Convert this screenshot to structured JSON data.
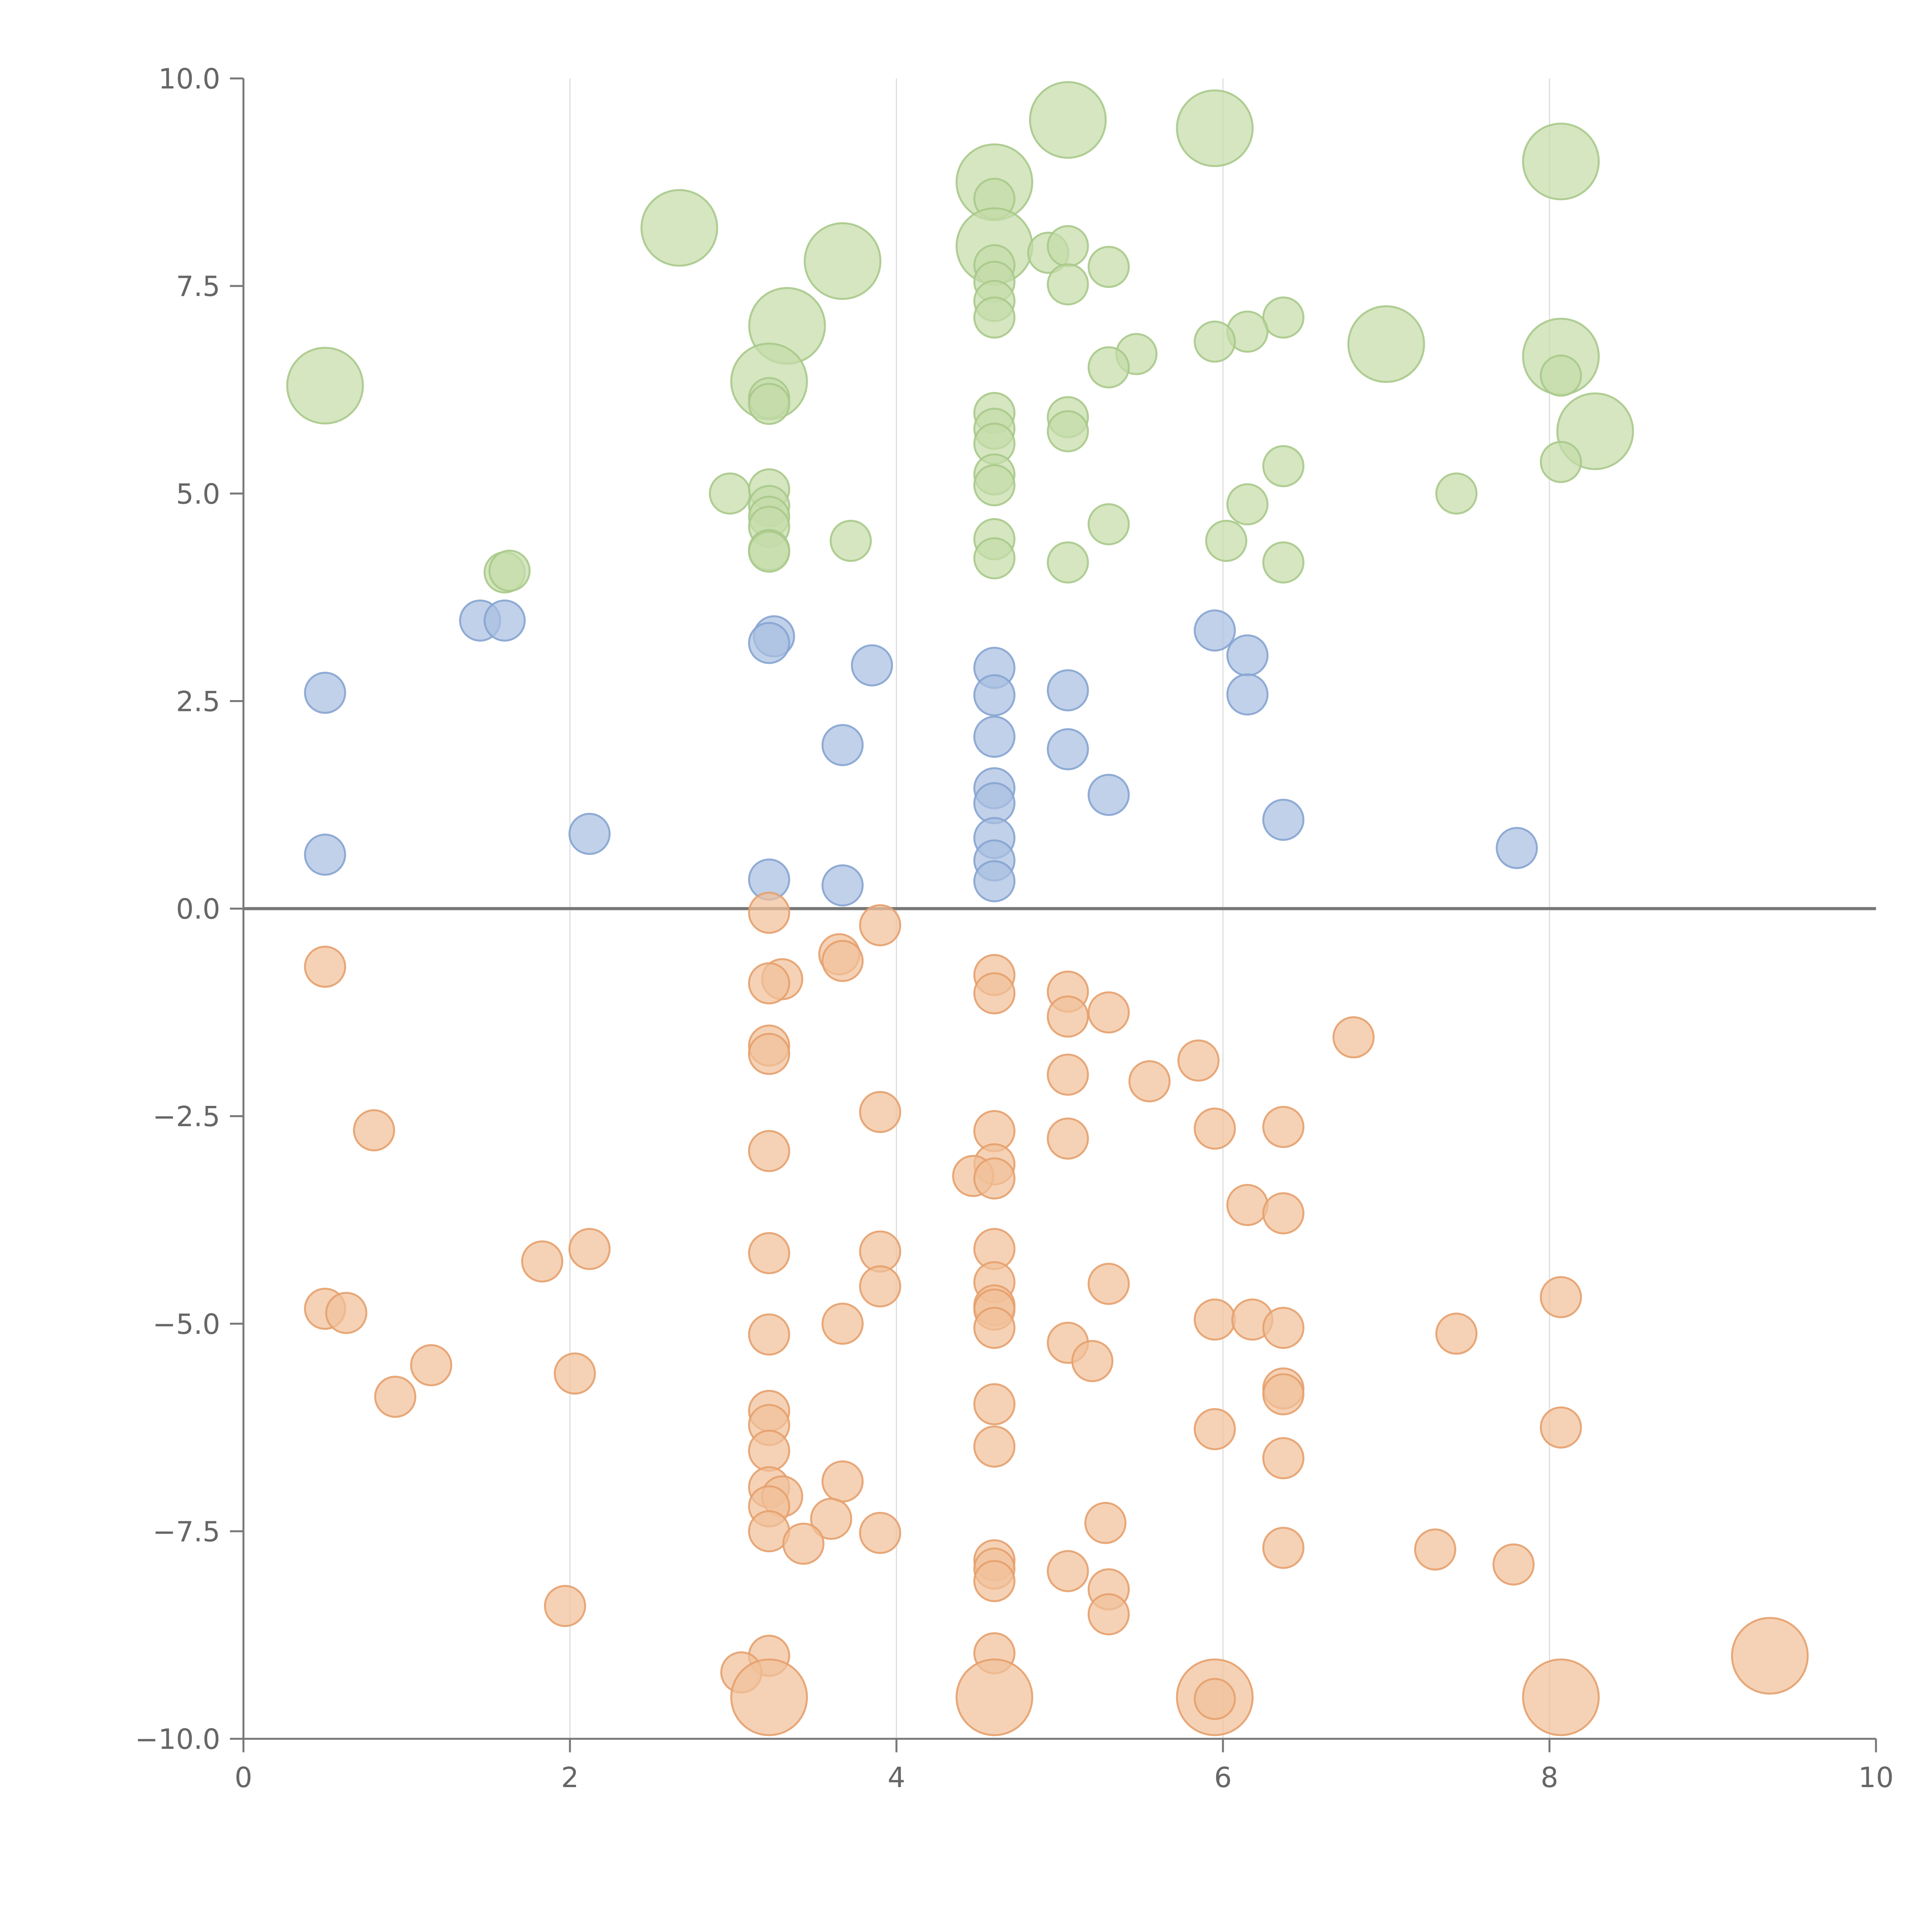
{
  "chart_data": {
    "type": "scatter",
    "title": "",
    "xlabel": "",
    "ylabel": "",
    "xlim": [
      0,
      10
    ],
    "ylim": [
      -10,
      10
    ],
    "x_ticks": [
      "0",
      "2",
      "4",
      "6",
      "8",
      "10"
    ],
    "y_ticks": [
      "−10.0",
      "−7.5",
      "−5.0",
      "−2.5",
      "0.0",
      "2.5",
      "5.0",
      "7.5",
      "10.0"
    ],
    "grid": "vertical",
    "legend": "none",
    "colors": {
      "green_fill": "#c5dca9",
      "green_stroke": "#a9c98a",
      "blue_fill": "#a9bfe0",
      "blue_stroke": "#86a4d2",
      "orange_fill": "#f1c09a",
      "orange_stroke": "#e6a06d"
    },
    "series": [
      {
        "color": "green",
        "points": [
          [
            5.05,
            9.5,
            1
          ],
          [
            5.95,
            9.4,
            1
          ],
          [
            8.07,
            9.0,
            1
          ],
          [
            4.6,
            8.75,
            1
          ],
          [
            4.6,
            8.55,
            0
          ],
          [
            2.67,
            8.2,
            1
          ],
          [
            4.6,
            7.98,
            1
          ],
          [
            3.67,
            7.8,
            1
          ],
          [
            4.93,
            7.9,
            0
          ],
          [
            5.05,
            7.98,
            0
          ],
          [
            5.3,
            7.73,
            0
          ],
          [
            4.6,
            7.75,
            0
          ],
          [
            4.6,
            7.55,
            0
          ],
          [
            5.05,
            7.52,
            0
          ],
          [
            4.6,
            7.32,
            0
          ],
          [
            4.6,
            7.12,
            0
          ],
          [
            3.33,
            7.02,
            1
          ],
          [
            6.37,
            7.12,
            0
          ],
          [
            6.15,
            6.95,
            0
          ],
          [
            5.95,
            6.83,
            0
          ],
          [
            7.0,
            6.8,
            1
          ],
          [
            8.07,
            6.65,
            1
          ],
          [
            5.47,
            6.68,
            0
          ],
          [
            5.3,
            6.52,
            0
          ],
          [
            8.07,
            6.42,
            0
          ],
          [
            0.5,
            6.3,
            1
          ],
          [
            3.22,
            6.35,
            1
          ],
          [
            3.22,
            6.15,
            0
          ],
          [
            3.22,
            6.08,
            0
          ],
          [
            4.6,
            5.97,
            0
          ],
          [
            5.05,
            5.92,
            0
          ],
          [
            8.28,
            5.75,
            1
          ],
          [
            4.6,
            5.78,
            0
          ],
          [
            5.05,
            5.75,
            0
          ],
          [
            4.6,
            5.6,
            0
          ],
          [
            8.07,
            5.38,
            0
          ],
          [
            6.37,
            5.33,
            0
          ],
          [
            4.6,
            5.23,
            0
          ],
          [
            4.6,
            5.1,
            0
          ],
          [
            2.98,
            5.0,
            0
          ],
          [
            3.22,
            5.05,
            0
          ],
          [
            7.43,
            5.0,
            0
          ],
          [
            3.22,
            4.85,
            0
          ],
          [
            6.15,
            4.87,
            0
          ],
          [
            3.22,
            4.72,
            0
          ],
          [
            3.22,
            4.6,
            0
          ],
          [
            5.3,
            4.63,
            0
          ],
          [
            4.6,
            4.45,
            0
          ],
          [
            3.72,
            4.43,
            0
          ],
          [
            6.02,
            4.43,
            0
          ],
          [
            3.22,
            4.32,
            0
          ],
          [
            3.22,
            4.3,
            0
          ],
          [
            4.6,
            4.22,
            0
          ],
          [
            5.05,
            4.17,
            0
          ],
          [
            6.37,
            4.17,
            0
          ],
          [
            1.6,
            4.05,
            0
          ],
          [
            1.63,
            4.07,
            0
          ]
        ]
      },
      {
        "color": "blue",
        "points": [
          [
            1.45,
            3.47,
            0
          ],
          [
            1.6,
            3.47,
            0
          ],
          [
            5.95,
            3.35,
            0
          ],
          [
            3.25,
            3.28,
            0
          ],
          [
            3.22,
            3.2,
            0
          ],
          [
            6.15,
            3.05,
            0
          ],
          [
            3.85,
            2.93,
            0
          ],
          [
            4.6,
            2.9,
            0
          ],
          [
            0.5,
            2.6,
            0
          ],
          [
            5.05,
            2.63,
            0
          ],
          [
            4.6,
            2.57,
            0
          ],
          [
            6.15,
            2.58,
            0
          ],
          [
            4.6,
            2.07,
            0
          ],
          [
            3.67,
            1.97,
            0
          ],
          [
            5.05,
            1.92,
            0
          ],
          [
            4.6,
            1.45,
            0
          ],
          [
            5.3,
            1.37,
            0
          ],
          [
            4.6,
            1.27,
            0
          ],
          [
            6.37,
            1.07,
            0
          ],
          [
            2.12,
            0.9,
            0
          ],
          [
            4.6,
            0.85,
            0
          ],
          [
            7.8,
            0.73,
            0
          ],
          [
            0.5,
            0.65,
            0
          ],
          [
            4.6,
            0.58,
            0
          ],
          [
            3.22,
            0.35,
            0
          ],
          [
            4.6,
            0.33,
            0
          ],
          [
            3.67,
            0.28,
            0
          ]
        ]
      },
      {
        "color": "orange",
        "points": [
          [
            3.22,
            -0.05,
            0
          ],
          [
            3.9,
            -0.2,
            0
          ],
          [
            3.65,
            -0.55,
            0
          ],
          [
            3.67,
            -0.63,
            0
          ],
          [
            0.5,
            -0.7,
            0
          ],
          [
            4.6,
            -0.8,
            0
          ],
          [
            3.3,
            -0.85,
            0
          ],
          [
            3.22,
            -0.9,
            0
          ],
          [
            5.05,
            -1.0,
            0
          ],
          [
            4.6,
            -1.02,
            0
          ],
          [
            5.3,
            -1.25,
            0
          ],
          [
            5.05,
            -1.3,
            0
          ],
          [
            6.8,
            -1.55,
            0
          ],
          [
            3.22,
            -1.65,
            0
          ],
          [
            3.22,
            -1.75,
            0
          ],
          [
            5.85,
            -1.83,
            0
          ],
          [
            5.05,
            -2.0,
            0
          ],
          [
            5.55,
            -2.08,
            0
          ],
          [
            3.9,
            -2.45,
            0
          ],
          [
            5.95,
            -2.65,
            0
          ],
          [
            6.37,
            -2.63,
            0
          ],
          [
            0.8,
            -2.67,
            0
          ],
          [
            4.6,
            -2.68,
            0
          ],
          [
            5.05,
            -2.77,
            0
          ],
          [
            3.22,
            -2.92,
            0
          ],
          [
            4.6,
            -3.08,
            0
          ],
          [
            4.47,
            -3.22,
            0
          ],
          [
            4.6,
            -3.25,
            0
          ],
          [
            6.15,
            -3.57,
            0
          ],
          [
            6.37,
            -3.67,
            0
          ],
          [
            4.6,
            -4.1,
            0
          ],
          [
            2.12,
            -4.1,
            0
          ],
          [
            3.9,
            -4.13,
            0
          ],
          [
            3.22,
            -4.15,
            0
          ],
          [
            1.83,
            -4.25,
            0
          ],
          [
            4.6,
            -4.5,
            0
          ],
          [
            5.3,
            -4.52,
            0
          ],
          [
            3.9,
            -4.55,
            0
          ],
          [
            8.07,
            -4.68,
            0
          ],
          [
            4.6,
            -4.78,
            0
          ],
          [
            0.5,
            -4.82,
            0
          ],
          [
            4.6,
            -4.83,
            0
          ],
          [
            0.63,
            -4.87,
            0
          ],
          [
            5.95,
            -4.95,
            0
          ],
          [
            6.18,
            -4.95,
            0
          ],
          [
            3.67,
            -5.0,
            0
          ],
          [
            4.6,
            -5.05,
            0
          ],
          [
            6.37,
            -5.05,
            0
          ],
          [
            3.22,
            -5.13,
            0
          ],
          [
            7.43,
            -5.12,
            0
          ],
          [
            5.05,
            -5.23,
            0
          ],
          [
            5.2,
            -5.45,
            0
          ],
          [
            1.15,
            -5.5,
            0
          ],
          [
            2.03,
            -5.6,
            0
          ],
          [
            6.37,
            -5.78,
            0
          ],
          [
            6.37,
            -5.85,
            0
          ],
          [
            0.93,
            -5.88,
            0
          ],
          [
            4.6,
            -5.97,
            0
          ],
          [
            3.22,
            -6.05,
            0
          ],
          [
            3.22,
            -6.22,
            0
          ],
          [
            5.95,
            -6.27,
            0
          ],
          [
            8.07,
            -6.25,
            0
          ],
          [
            4.6,
            -6.48,
            0
          ],
          [
            3.22,
            -6.53,
            0
          ],
          [
            6.37,
            -6.62,
            0
          ],
          [
            3.67,
            -6.9,
            0
          ],
          [
            3.22,
            -6.97,
            0
          ],
          [
            3.3,
            -7.08,
            0
          ],
          [
            3.22,
            -7.2,
            0
          ],
          [
            3.6,
            -7.35,
            0
          ],
          [
            5.28,
            -7.4,
            0
          ],
          [
            3.22,
            -7.5,
            0
          ],
          [
            3.9,
            -7.52,
            0
          ],
          [
            3.43,
            -7.65,
            0
          ],
          [
            6.37,
            -7.7,
            0
          ],
          [
            7.3,
            -7.72,
            0
          ],
          [
            4.6,
            -7.85,
            0
          ],
          [
            7.78,
            -7.9,
            0
          ],
          [
            4.6,
            -7.95,
            0
          ],
          [
            5.05,
            -7.98,
            0
          ],
          [
            4.6,
            -8.1,
            0
          ],
          [
            5.3,
            -8.2,
            0
          ],
          [
            5.3,
            -8.5,
            0
          ],
          [
            1.97,
            -8.4,
            0
          ],
          [
            9.35,
            -9.0,
            1
          ],
          [
            3.22,
            -9.0,
            0
          ],
          [
            4.6,
            -8.97,
            0
          ],
          [
            3.05,
            -9.2,
            0
          ],
          [
            3.22,
            -9.5,
            1
          ],
          [
            4.6,
            -9.5,
            1
          ],
          [
            5.95,
            -9.5,
            1
          ],
          [
            5.95,
            -9.52,
            0
          ],
          [
            8.07,
            -9.5,
            1
          ]
        ]
      }
    ]
  }
}
